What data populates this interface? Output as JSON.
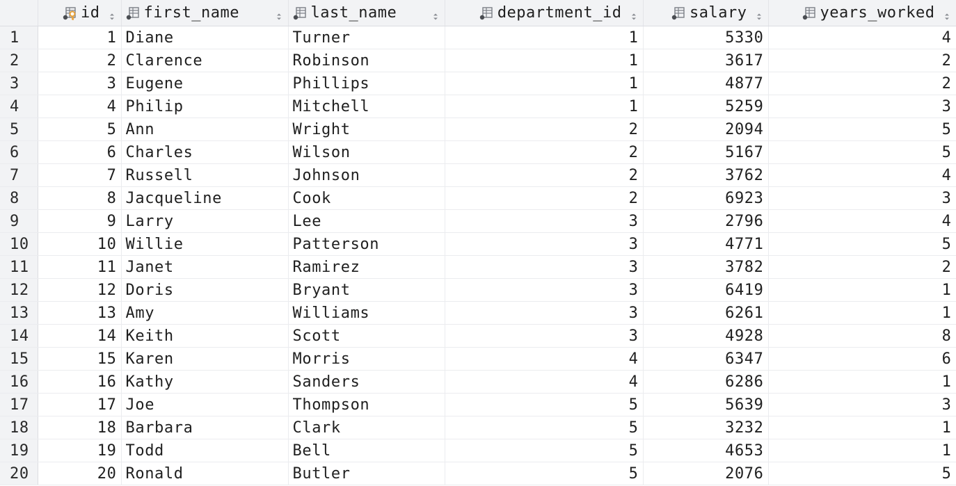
{
  "columns": [
    {
      "key": "id",
      "label": "id",
      "is_primary_key": true,
      "align": "right"
    },
    {
      "key": "first_name",
      "label": "first_name",
      "is_primary_key": false,
      "align": "left"
    },
    {
      "key": "last_name",
      "label": "last_name",
      "is_primary_key": false,
      "align": "left"
    },
    {
      "key": "department_id",
      "label": "department_id",
      "is_primary_key": false,
      "align": "right"
    },
    {
      "key": "salary",
      "label": "salary",
      "is_primary_key": false,
      "align": "right"
    },
    {
      "key": "years_worked",
      "label": "years_worked",
      "is_primary_key": false,
      "align": "right"
    }
  ],
  "icons": {
    "column": "column-icon",
    "primary_key": "key-icon",
    "sort": "sort-icon"
  },
  "colors": {
    "header_bg": "#f2f3f5",
    "key_accent": "#e8a33d",
    "icon_gray": "#7a7e85"
  },
  "rows": [
    {
      "row_number": "1",
      "id": "1",
      "first_name": "Diane",
      "last_name": "Turner",
      "department_id": "1",
      "salary": "5330",
      "years_worked": "4"
    },
    {
      "row_number": "2",
      "id": "2",
      "first_name": "Clarence",
      "last_name": "Robinson",
      "department_id": "1",
      "salary": "3617",
      "years_worked": "2"
    },
    {
      "row_number": "3",
      "id": "3",
      "first_name": "Eugene",
      "last_name": "Phillips",
      "department_id": "1",
      "salary": "4877",
      "years_worked": "2"
    },
    {
      "row_number": "4",
      "id": "4",
      "first_name": "Philip",
      "last_name": "Mitchell",
      "department_id": "1",
      "salary": "5259",
      "years_worked": "3"
    },
    {
      "row_number": "5",
      "id": "5",
      "first_name": "Ann",
      "last_name": "Wright",
      "department_id": "2",
      "salary": "2094",
      "years_worked": "5"
    },
    {
      "row_number": "6",
      "id": "6",
      "first_name": "Charles",
      "last_name": "Wilson",
      "department_id": "2",
      "salary": "5167",
      "years_worked": "5"
    },
    {
      "row_number": "7",
      "id": "7",
      "first_name": "Russell",
      "last_name": "Johnson",
      "department_id": "2",
      "salary": "3762",
      "years_worked": "4"
    },
    {
      "row_number": "8",
      "id": "8",
      "first_name": "Jacqueline",
      "last_name": "Cook",
      "department_id": "2",
      "salary": "6923",
      "years_worked": "3"
    },
    {
      "row_number": "9",
      "id": "9",
      "first_name": "Larry",
      "last_name": "Lee",
      "department_id": "3",
      "salary": "2796",
      "years_worked": "4"
    },
    {
      "row_number": "10",
      "id": "10",
      "first_name": "Willie",
      "last_name": "Patterson",
      "department_id": "3",
      "salary": "4771",
      "years_worked": "5"
    },
    {
      "row_number": "11",
      "id": "11",
      "first_name": "Janet",
      "last_name": "Ramirez",
      "department_id": "3",
      "salary": "3782",
      "years_worked": "2"
    },
    {
      "row_number": "12",
      "id": "12",
      "first_name": "Doris",
      "last_name": "Bryant",
      "department_id": "3",
      "salary": "6419",
      "years_worked": "1"
    },
    {
      "row_number": "13",
      "id": "13",
      "first_name": "Amy",
      "last_name": "Williams",
      "department_id": "3",
      "salary": "6261",
      "years_worked": "1"
    },
    {
      "row_number": "14",
      "id": "14",
      "first_name": "Keith",
      "last_name": "Scott",
      "department_id": "3",
      "salary": "4928",
      "years_worked": "8"
    },
    {
      "row_number": "15",
      "id": "15",
      "first_name": "Karen",
      "last_name": "Morris",
      "department_id": "4",
      "salary": "6347",
      "years_worked": "6"
    },
    {
      "row_number": "16",
      "id": "16",
      "first_name": "Kathy",
      "last_name": "Sanders",
      "department_id": "4",
      "salary": "6286",
      "years_worked": "1"
    },
    {
      "row_number": "17",
      "id": "17",
      "first_name": "Joe",
      "last_name": "Thompson",
      "department_id": "5",
      "salary": "5639",
      "years_worked": "3"
    },
    {
      "row_number": "18",
      "id": "18",
      "first_name": "Barbara",
      "last_name": "Clark",
      "department_id": "5",
      "salary": "3232",
      "years_worked": "1"
    },
    {
      "row_number": "19",
      "id": "19",
      "first_name": "Todd",
      "last_name": "Bell",
      "department_id": "5",
      "salary": "4653",
      "years_worked": "1"
    },
    {
      "row_number": "20",
      "id": "20",
      "first_name": "Ronald",
      "last_name": "Butler",
      "department_id": "5",
      "salary": "2076",
      "years_worked": "5"
    }
  ]
}
